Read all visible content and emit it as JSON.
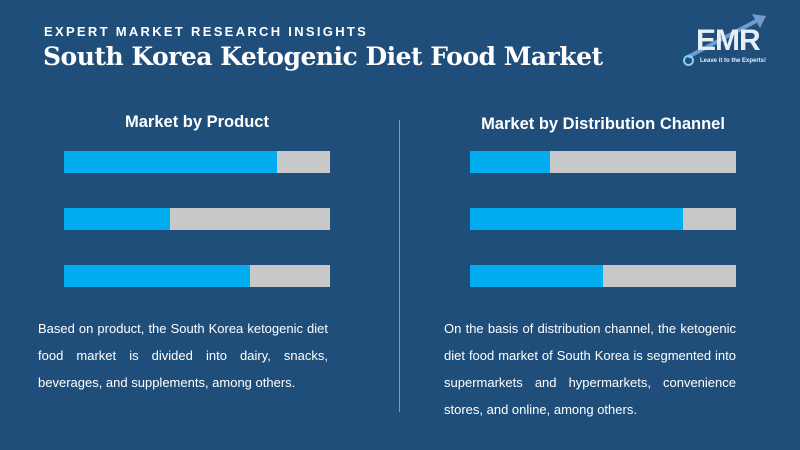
{
  "header": {
    "kicker": "EXPERT MARKET RESEARCH INSIGHTS",
    "title": "South Korea Ketogenic Diet Food Market"
  },
  "logo": {
    "text": "EMR",
    "tagline": "Leave it to the Experts!"
  },
  "colors": {
    "background": "#1f4e7a",
    "fill": "#00aeef",
    "track": "#c8c8c8"
  },
  "left": {
    "heading": "Market by Product",
    "bars": [
      0.8,
      0.4,
      0.7
    ],
    "description": "Based on product, the South Korea ketogenic diet food market is divided into dairy, snacks, beverages, and supplements, among others."
  },
  "right": {
    "heading": "Market by Distribution Channel",
    "bars": [
      0.3,
      0.8,
      0.5
    ],
    "description": "On the basis of distribution channel, the ketogenic diet food market of South Korea is segmented into supermarkets and hypermarkets, convenience stores, and online, among others."
  }
}
